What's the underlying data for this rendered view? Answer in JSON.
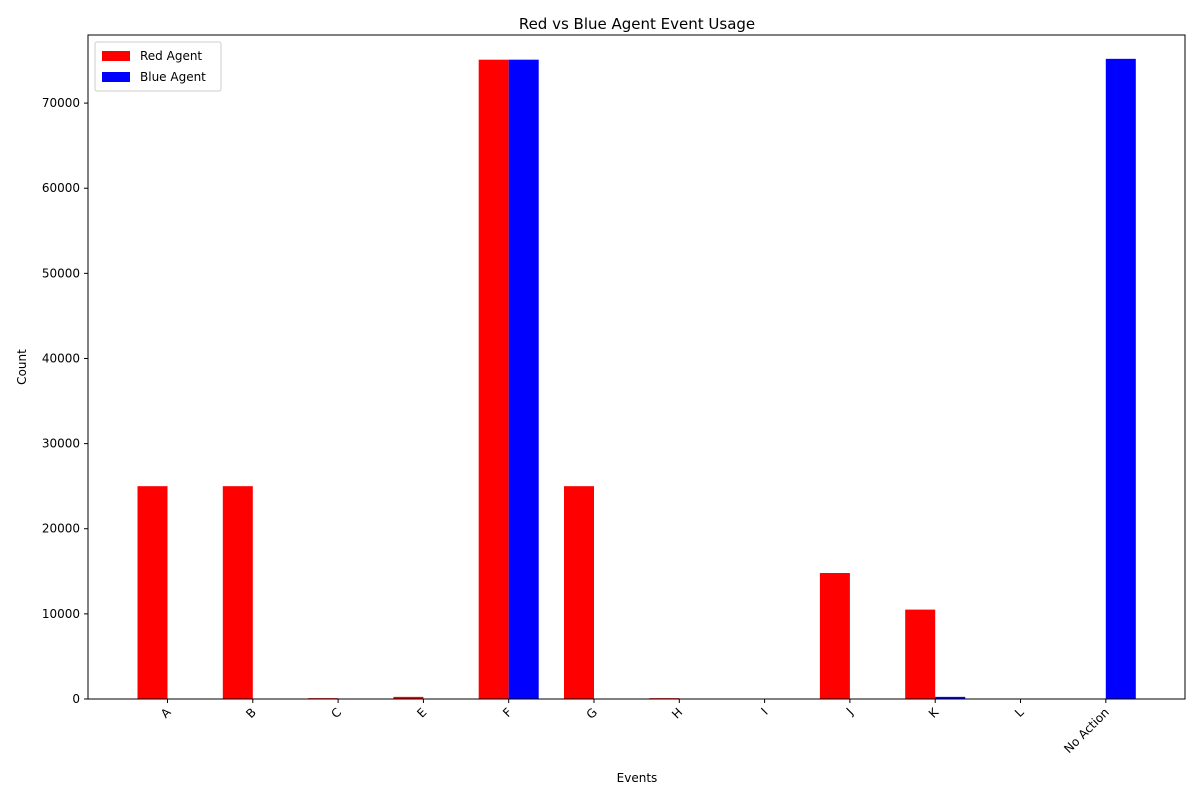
{
  "chart_data": {
    "type": "bar",
    "title": "Red vs Blue Agent Event Usage",
    "xlabel": "Events",
    "ylabel": "Count",
    "categories": [
      "A",
      "B",
      "C",
      "E",
      "F",
      "G",
      "H",
      "I",
      "J",
      "K",
      "L",
      "No Action"
    ],
    "series": [
      {
        "name": "Red Agent",
        "color": "#ff0000",
        "values": [
          25000,
          25000,
          100,
          250,
          75100,
          25000,
          100,
          0,
          14800,
          10500,
          0,
          0
        ]
      },
      {
        "name": "Blue Agent",
        "color": "#0000ff",
        "values": [
          0,
          0,
          0,
          0,
          75100,
          0,
          0,
          0,
          0,
          250,
          0,
          75200
        ]
      }
    ],
    "ylim": [
      0,
      78000
    ],
    "yticks": [
      0,
      10000,
      20000,
      30000,
      40000,
      50000,
      60000,
      70000
    ],
    "grid": false,
    "legend_position": "top-left"
  }
}
